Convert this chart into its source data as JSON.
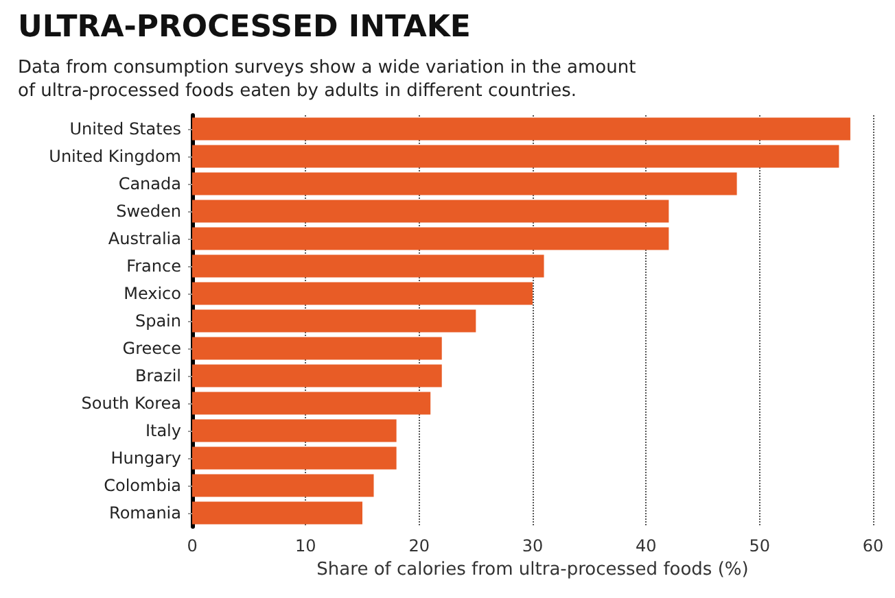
{
  "chart_data": {
    "type": "bar",
    "orientation": "horizontal",
    "title": "ULTRA-PROCESSED INTAKE",
    "subtitle": "Data from consumption surveys show a wide variation in the amount\nof ultra-processed foods eaten by adults in different countries.",
    "xlabel": "Share of calories from ultra-processed foods (%)",
    "categories": [
      "United States",
      "United Kingdom",
      "Canada",
      "Sweden",
      "Australia",
      "France",
      "Mexico",
      "Spain",
      "Greece",
      "Brazil",
      "South Korea",
      "Italy",
      "Hungary",
      "Colombia",
      "Romania"
    ],
    "values": [
      58,
      57,
      48,
      42,
      42,
      31,
      30,
      25,
      22,
      22,
      21,
      18,
      18,
      16,
      15
    ],
    "color": "#e85c26",
    "xlim": [
      0,
      60
    ],
    "xticks": [
      0,
      10,
      20,
      30,
      40,
      50,
      60
    ],
    "grid": "x",
    "line_style": "dotted"
  }
}
